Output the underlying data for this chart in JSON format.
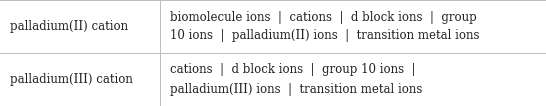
{
  "rows": [
    {
      "left": "palladium(II) cation",
      "right": "biomolecule ions  |  cations  |  d block ions  |  group\n10 ions  |  palladium(II) ions  |  transition metal ions"
    },
    {
      "left": "palladium(III) cation",
      "right": "cations  |  d block ions  |  group 10 ions  |\npalladium(III) ions  |  transition metal ions"
    }
  ],
  "col_split": 0.293,
  "bg_color": "#ffffff",
  "border_color": "#bbbbbb",
  "text_color": "#222222",
  "font_size": 8.5,
  "fig_width": 5.46,
  "fig_height": 1.06,
  "dpi": 100
}
